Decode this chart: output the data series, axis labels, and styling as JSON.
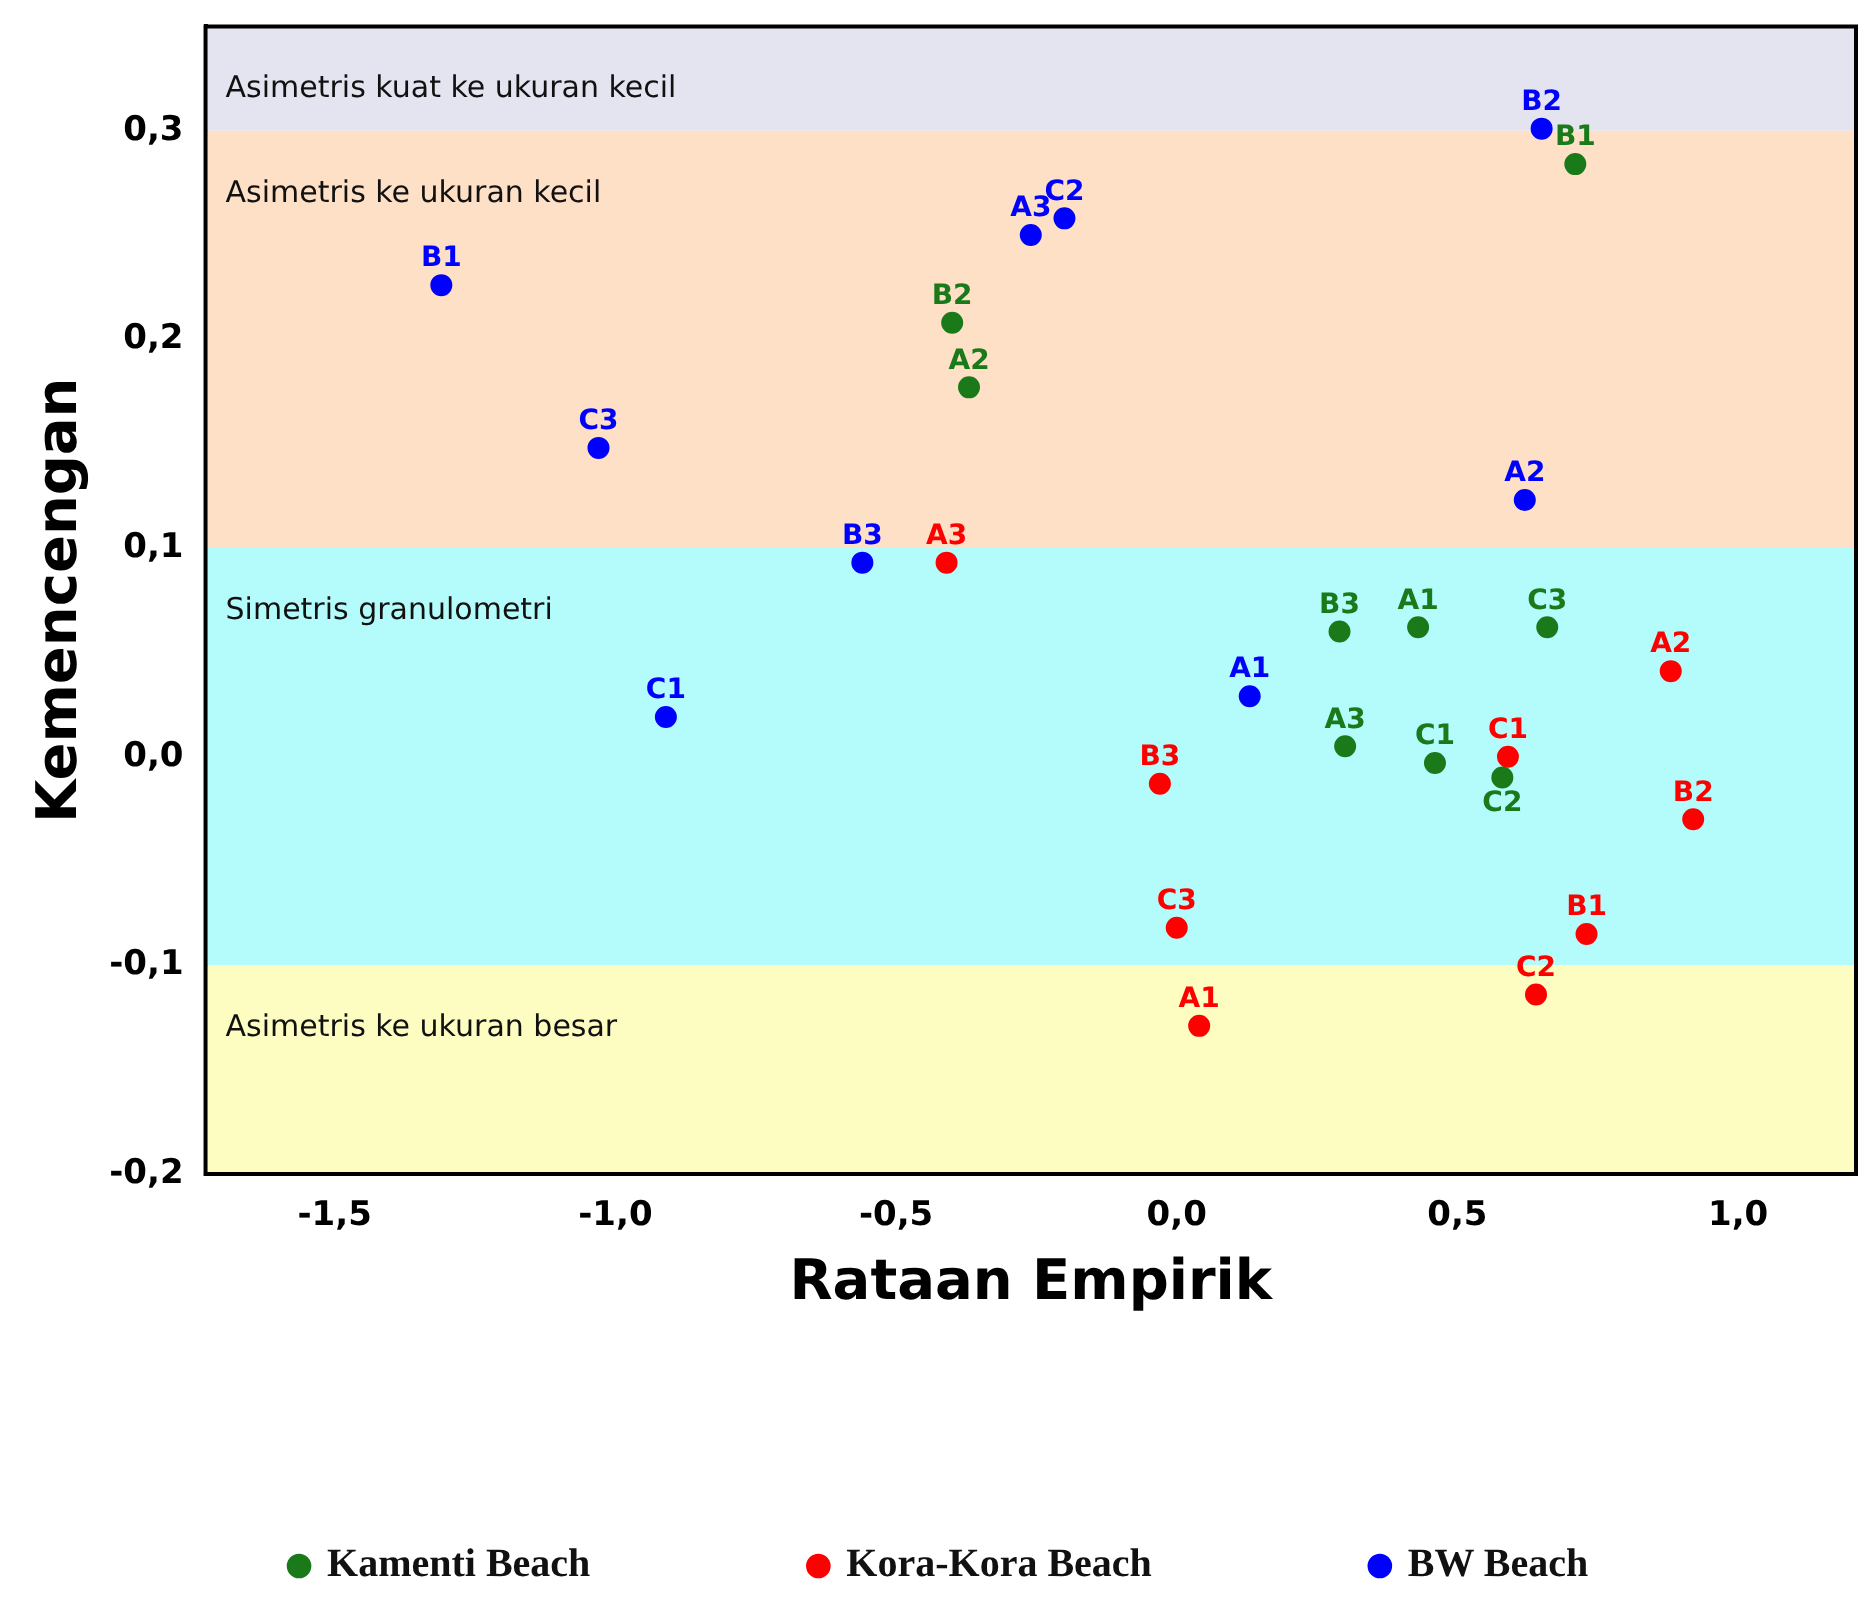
{
  "chart_data": {
    "type": "scatter",
    "xlabel": "Rataan Empirik",
    "ylabel": "Kemencengan",
    "xlim": [
      -1.73,
      1.21
    ],
    "xticks": [
      {
        "value": -1.5,
        "label": "-1,5"
      },
      {
        "value": -1,
        "label": "-1,0"
      },
      {
        "value": -0.5,
        "label": "-0,5"
      },
      {
        "value": 0,
        "label": "0,0"
      },
      {
        "value": 0.5,
        "label": "0,5"
      },
      {
        "value": 1,
        "label": "1,0"
      }
    ],
    "ylim": [
      -0.2,
      0.35
    ],
    "yticks": [
      {
        "value": -0.2,
        "label": "-0,2"
      },
      {
        "value": -0.1,
        "label": "-0,1"
      },
      {
        "value": 0,
        "label": "0,0"
      },
      {
        "value": 0.1,
        "label": "0,1"
      },
      {
        "value": 0.2,
        "label": "0,2"
      },
      {
        "value": 0.3,
        "label": "0,3"
      }
    ],
    "grid": false,
    "legend": "bottom",
    "marker": "circle",
    "bands": [
      {
        "axis": "y",
        "from": 0.3,
        "to": 0.35,
        "label": "Asimetris kuat ke ukuran kecil",
        "color": "#e4e4f0"
      },
      {
        "axis": "y",
        "from": 0.1,
        "to": 0.3,
        "label": "Asimetris ke ukuran kecil",
        "color": "#fde0c6"
      },
      {
        "axis": "y",
        "from": -0.1,
        "to": 0.1,
        "label": "Simetris granulometri",
        "color": "#b4fcfc"
      },
      {
        "axis": "y",
        "from": -0.2,
        "to": -0.1,
        "label": "Asimetris ke ukuran besar",
        "color": "#fdfdc2"
      }
    ],
    "series": [
      {
        "name": "Kamenti Beach",
        "color": "#1a7a1a",
        "x": [
          0.71,
          -0.4,
          -0.37,
          0.29,
          0.43,
          0.66,
          0.3,
          0.46,
          0.58
        ],
        "values": [
          0.284,
          0.208,
          0.177,
          0.06,
          0.062,
          0.062,
          0.005,
          -0.003,
          -0.01
        ],
        "value_labels": [
          "B1",
          "B2",
          "A2",
          "B3",
          "A1",
          "C3",
          "A3",
          "C1",
          "C2"
        ]
      },
      {
        "name": "Kora-Kora Beach",
        "color": "#ff0000",
        "x": [
          -0.41,
          -0.03,
          0.59,
          0.88,
          0.92,
          0,
          0.73,
          0.64,
          0.04
        ],
        "values": [
          0.093,
          -0.013,
          0,
          0.041,
          -0.03,
          -0.082,
          -0.085,
          -0.114,
          -0.129
        ],
        "value_labels": [
          "A3",
          "B3",
          "C1",
          "A2",
          "B2",
          "C3",
          "B1",
          "C2",
          "A1"
        ]
      },
      {
        "name": "BW Beach",
        "color": "#0000ff",
        "x": [
          0.65,
          -0.26,
          -0.2,
          -1.31,
          -1.03,
          0.62,
          -0.56,
          -0.91,
          0.13
        ],
        "values": [
          0.301,
          0.25,
          0.258,
          0.226,
          0.148,
          0.123,
          0.093,
          0.019,
          0.029
        ],
        "value_labels": [
          "B2",
          "A3",
          "C2",
          "B1",
          "C3",
          "A2",
          "B3",
          "C1",
          "A1"
        ]
      }
    ]
  }
}
